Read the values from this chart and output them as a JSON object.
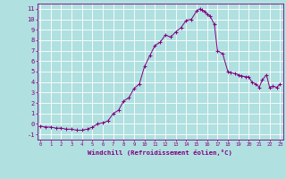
{
  "x": [
    0,
    0.5,
    1,
    1.5,
    2,
    2.5,
    3,
    3.5,
    4,
    4.5,
    5,
    5.5,
    6,
    6.5,
    7,
    7.5,
    8,
    8.5,
    9,
    9.5,
    10,
    10.5,
    11,
    11.5,
    12,
    12.5,
    13,
    13.5,
    14,
    14.5,
    15,
    15.3,
    15.5,
    15.8,
    16,
    16.3,
    16.7,
    17,
    17.5,
    18,
    18.3,
    18.7,
    19,
    19.3,
    19.7,
    20,
    20.3,
    20.7,
    21,
    21.3,
    21.7,
    22,
    22.3,
    22.7,
    23
  ],
  "y": [
    -0.2,
    -0.3,
    -0.3,
    -0.4,
    -0.4,
    -0.5,
    -0.5,
    -0.6,
    -0.6,
    -0.5,
    -0.3,
    0.0,
    0.1,
    0.3,
    1.0,
    1.3,
    2.2,
    2.5,
    3.4,
    3.8,
    5.5,
    6.5,
    7.5,
    7.8,
    8.5,
    8.3,
    8.8,
    9.2,
    9.9,
    10.0,
    10.8,
    11.0,
    10.9,
    10.7,
    10.5,
    10.3,
    9.5,
    7.0,
    6.7,
    5.0,
    4.9,
    4.8,
    4.7,
    4.6,
    4.5,
    4.5,
    4.0,
    3.8,
    3.5,
    4.2,
    4.7,
    3.5,
    3.6,
    3.5,
    3.8
  ],
  "line_color": "#800080",
  "bg_color": "#b0e0e0",
  "grid_color": "#ffffff",
  "xlabel": "Windchill (Refroidissement éolien,°C)",
  "xlabel_color": "#800080",
  "tick_color": "#800080",
  "ylabel_ticks": [
    -1,
    0,
    1,
    2,
    3,
    4,
    5,
    6,
    7,
    8,
    9,
    10,
    11
  ],
  "xticks": [
    0,
    1,
    2,
    3,
    4,
    5,
    6,
    7,
    8,
    9,
    10,
    11,
    12,
    13,
    14,
    15,
    16,
    17,
    18,
    19,
    20,
    21,
    22,
    23
  ],
  "xlim": [
    -0.3,
    23.3
  ],
  "ylim": [
    -1.5,
    11.5
  ]
}
